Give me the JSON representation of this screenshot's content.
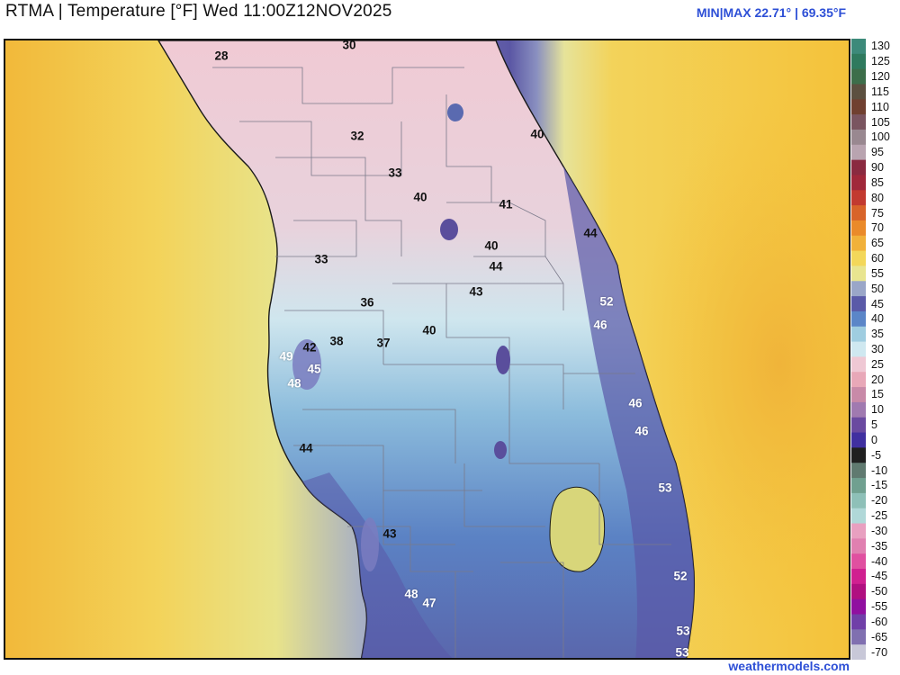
{
  "header": {
    "title": "RTMA | Temperature [°F]  Wed 11:00Z12NOV2025",
    "minmax": "MIN|MAX 22.71° | 69.35°F"
  },
  "credit": "weathermodels.com",
  "colors": {
    "gulf_far": "#f2b93a",
    "gulf_mid": "#e8e06a",
    "gulf_near": "#9aa6c8",
    "coast_purple": "#5a5aa8",
    "inland_blue": "#5b86c8",
    "light_blue": "#cfe8f0",
    "pink": "#efc8d4",
    "atlantic": "#f5c23f",
    "accent_text": "#2d4fd6"
  },
  "map": {
    "station_labels": [
      {
        "text": "30",
        "style": "dark"
      },
      {
        "text": "28",
        "style": "dark"
      },
      {
        "text": "32",
        "style": "dark"
      },
      {
        "text": "40",
        "style": "dark"
      },
      {
        "text": "33",
        "style": "dark"
      },
      {
        "text": "40",
        "style": "dark"
      },
      {
        "text": "41",
        "style": "dark"
      },
      {
        "text": "44",
        "style": "dark"
      },
      {
        "text": "40",
        "style": "dark"
      },
      {
        "text": "44",
        "style": "dark"
      },
      {
        "text": "33",
        "style": "dark"
      },
      {
        "text": "43",
        "style": "dark"
      },
      {
        "text": "36",
        "style": "dark"
      },
      {
        "text": "52",
        "style": "light"
      },
      {
        "text": "46",
        "style": "light"
      },
      {
        "text": "40",
        "style": "dark"
      },
      {
        "text": "38",
        "style": "dark"
      },
      {
        "text": "37",
        "style": "dark"
      },
      {
        "text": "42",
        "style": "dark"
      },
      {
        "text": "49",
        "style": "light"
      },
      {
        "text": "45",
        "style": "light"
      },
      {
        "text": "48",
        "style": "light"
      },
      {
        "text": "46",
        "style": "light"
      },
      {
        "text": "46",
        "style": "light"
      },
      {
        "text": "44",
        "style": "dark"
      },
      {
        "text": "53",
        "style": "light"
      },
      {
        "text": "43",
        "style": "dark"
      },
      {
        "text": "52",
        "style": "light"
      },
      {
        "text": "48",
        "style": "light"
      },
      {
        "text": "47",
        "style": "light"
      },
      {
        "text": "53",
        "style": "light"
      },
      {
        "text": "53",
        "style": "light"
      }
    ]
  },
  "legend": {
    "ticks": [
      "130",
      "125",
      "120",
      "115",
      "110",
      "105",
      "100",
      "95",
      "90",
      "85",
      "80",
      "75",
      "70",
      "65",
      "60",
      "55",
      "50",
      "45",
      "40",
      "35",
      "30",
      "25",
      "20",
      "15",
      "10",
      "5",
      "0",
      "-5",
      "-10",
      "-15",
      "-20",
      "-25",
      "-30",
      "-35",
      "-40",
      "-45",
      "-50",
      "-55",
      "-60",
      "-65",
      "-70"
    ],
    "colors": [
      "#3d8a7a",
      "#2f7a5e",
      "#3d6e4a",
      "#5c5040",
      "#704030",
      "#7a5560",
      "#998890",
      "#b9a4b0",
      "#8a2a40",
      "#a0283a",
      "#c23a30",
      "#d8642a",
      "#ea8a2a",
      "#f1b13a",
      "#f3d75a",
      "#e8e590",
      "#9aa6c8",
      "#5a5aa8",
      "#5b86c8",
      "#9fcde0",
      "#cfe8f0",
      "#efc8d4",
      "#e8a8b8",
      "#c88aa8",
      "#a07ab0",
      "#6a4aa0",
      "#4030a0",
      "#202020",
      "#607a70",
      "#70a090",
      "#8ec0b8",
      "#b0d8d8",
      "#e8a0c0",
      "#e080b0",
      "#e050a0",
      "#d02090",
      "#b01080",
      "#9010a0",
      "#7040a8",
      "#8070b0",
      "#c8c8d8"
    ]
  }
}
